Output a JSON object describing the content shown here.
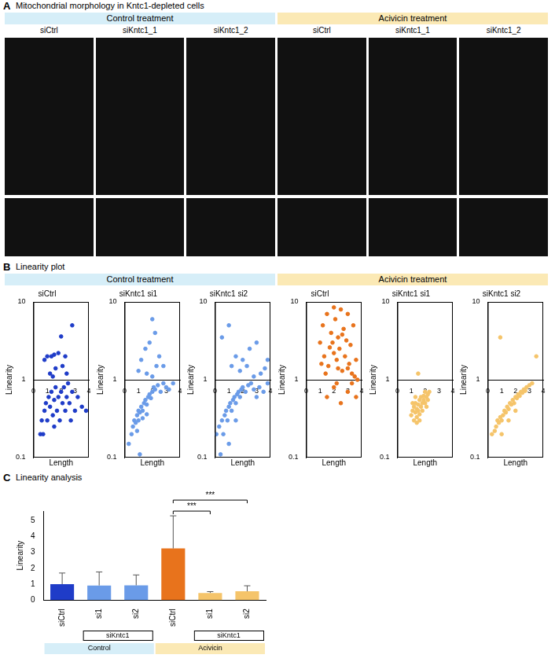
{
  "panel_a": {
    "letter": "A",
    "title": "Mitochondrial morphology in Kntc1-depleted cells",
    "groups": [
      {
        "label": "Control treatment",
        "color": "#d6eef8",
        "columns": [
          "siCtrl",
          "siKntc1_1",
          "siKntc1_2"
        ]
      },
      {
        "label": "Acivicin treatment",
        "color": "#fbe9b5",
        "columns": [
          "siCtrl",
          "siKntc1_1",
          "siKntc1_2"
        ]
      }
    ]
  },
  "panel_b": {
    "letter": "B",
    "title": "Linearity plot",
    "groups": [
      {
        "label": "Control treatment",
        "color": "#d6eef8"
      },
      {
        "label": "Acivicin treatment",
        "color": "#fbe9b5"
      }
    ]
  },
  "panel_c": {
    "letter": "C"
  },
  "chart_data": [
    {
      "type": "scatter",
      "title": "siCtrl",
      "color": "#1f3cc8",
      "log": "y",
      "x_label": "Length",
      "y_label": "Linearity",
      "xlim": [
        0,
        4
      ],
      "xticks": [
        0,
        1,
        2,
        3,
        4
      ],
      "ylim": [
        0.1,
        10
      ],
      "yticks": [
        0.1,
        1,
        10
      ],
      "x": [
        0.8,
        1.0,
        1.2,
        1.3,
        1.5,
        1.6,
        1.8,
        2.0,
        2.1,
        2.4,
        2.8,
        1.4,
        2.3,
        0.5,
        0.6,
        0.7,
        0.8,
        0.9,
        1.0,
        1.1,
        1.2,
        1.3,
        1.4,
        1.5,
        1.6,
        1.7,
        1.8,
        1.9,
        2.0,
        2.1,
        2.2,
        2.3,
        2.4,
        2.5,
        2.6,
        2.8,
        3.0,
        3.2,
        3.5,
        3.8,
        1.5,
        2.7
      ],
      "values": [
        1.8,
        2.0,
        1.2,
        2.0,
        2.1,
        1.4,
        2.2,
        3.6,
        1.5,
        1.2,
        5.0,
        1.1,
        2.0,
        0.2,
        0.3,
        0.2,
        0.4,
        0.5,
        0.3,
        0.6,
        0.45,
        0.7,
        0.35,
        0.55,
        0.8,
        0.4,
        0.6,
        0.3,
        0.7,
        0.5,
        0.8,
        0.4,
        0.6,
        0.9,
        0.5,
        0.7,
        0.4,
        0.6,
        0.45,
        0.4,
        0.25,
        0.3
      ]
    },
    {
      "type": "scatter",
      "title": "siKntc1 si1",
      "color": "#6a9be8",
      "log": "y",
      "x_label": "Length",
      "y_label": "Linearity",
      "xlim": [
        0,
        4
      ],
      "xticks": [
        0,
        1,
        2,
        3,
        4
      ],
      "ylim": [
        0.1,
        10
      ],
      "yticks": [
        0.1,
        1,
        10
      ],
      "x": [
        1.0,
        1.2,
        1.5,
        1.8,
        2.0,
        2.2,
        2.5,
        2.8,
        1.6,
        2.0,
        2.3,
        0.3,
        0.5,
        0.6,
        0.7,
        0.8,
        0.9,
        1.0,
        1.0,
        1.1,
        1.2,
        1.3,
        1.4,
        1.5,
        1.6,
        1.7,
        1.8,
        1.9,
        2.0,
        2.1,
        2.2,
        2.4,
        2.6,
        2.8,
        3.0,
        3.2,
        3.5,
        1.1,
        0.9,
        1.3,
        1.6
      ],
      "values": [
        1.3,
        1.8,
        2.5,
        3.0,
        6.0,
        4.0,
        2.0,
        1.5,
        1.2,
        1.1,
        1.5,
        0.15,
        0.2,
        0.25,
        0.3,
        0.28,
        0.35,
        0.3,
        0.4,
        0.38,
        0.45,
        0.4,
        0.5,
        0.55,
        0.48,
        0.6,
        0.65,
        0.58,
        0.7,
        0.8,
        0.75,
        0.85,
        0.7,
        0.9,
        0.8,
        0.75,
        0.9,
        0.11,
        0.22,
        0.32,
        0.36
      ]
    },
    {
      "type": "scatter",
      "title": "siKntc1 si2",
      "color": "#6a9be8",
      "log": "y",
      "x_label": "Length",
      "y_label": "Linearity",
      "xlim": [
        0,
        4
      ],
      "xticks": [
        0,
        1,
        2,
        3,
        4
      ],
      "ylim": [
        0.1,
        10
      ],
      "yticks": [
        0.1,
        1,
        10
      ],
      "x": [
        0.5,
        1.0,
        1.2,
        1.5,
        1.8,
        2.0,
        2.3,
        2.5,
        3.0,
        3.3,
        3.6,
        3.8,
        2.8,
        0.1,
        0.3,
        0.4,
        0.5,
        0.6,
        0.7,
        0.8,
        0.9,
        1.0,
        1.1,
        1.2,
        1.3,
        1.4,
        1.5,
        1.6,
        1.7,
        1.8,
        1.9,
        2.0,
        2.2,
        2.4,
        2.6,
        2.8,
        3.0,
        3.2,
        3.5,
        3.8,
        1.0,
        1.5
      ],
      "values": [
        3.5,
        5.0,
        1.5,
        2.0,
        1.3,
        1.8,
        1.5,
        2.5,
        3.0,
        1.2,
        1.4,
        1.8,
        1.1,
        0.2,
        0.25,
        0.11,
        0.3,
        0.2,
        0.35,
        0.4,
        0.3,
        0.45,
        0.5,
        0.4,
        0.55,
        0.6,
        0.5,
        0.65,
        0.7,
        0.6,
        0.75,
        0.8,
        0.7,
        0.85,
        0.9,
        0.75,
        0.6,
        0.8,
        0.7,
        0.9,
        0.15,
        0.3
      ]
    },
    {
      "type": "scatter",
      "title": "siCtrl",
      "color": "#e8731c",
      "log": "y",
      "x_label": "Length",
      "y_label": "Linearity",
      "xlim": [
        0,
        4
      ],
      "xticks": [
        0,
        1,
        2,
        3,
        4
      ],
      "ylim": [
        0.1,
        10
      ],
      "yticks": [
        0.1,
        1,
        10
      ],
      "x": [
        1.0,
        1.2,
        1.3,
        1.5,
        1.6,
        1.8,
        1.9,
        2.0,
        2.1,
        2.2,
        2.3,
        2.4,
        2.5,
        2.6,
        2.7,
        2.8,
        2.9,
        3.0,
        3.1,
        3.2,
        3.3,
        3.4,
        3.5,
        3.6,
        1.4,
        1.7,
        2.0,
        2.3,
        2.6,
        3.0,
        1.1,
        3.7,
        1.5,
        2.0,
        2.5,
        3.0,
        3.3,
        3.6,
        2.2
      ],
      "values": [
        3.0,
        5.0,
        2.0,
        7.0,
        1.5,
        4.0,
        3.0,
        2.2,
        6.0,
        1.8,
        3.5,
        2.5,
        8.0,
        1.3,
        4.5,
        2.0,
        3.2,
        7.0,
        1.6,
        2.8,
        1.2,
        5.0,
        1.1,
        1.8,
        1.2,
        2.6,
        8.5,
        1.4,
        3.8,
        1.4,
        1.6,
        1.0,
        0.6,
        0.8,
        0.5,
        0.7,
        0.9,
        0.6,
        0.9
      ]
    },
    {
      "type": "scatter",
      "title": "siKntc1 si1",
      "color": "#f5c46a",
      "log": "y",
      "x_label": "Length",
      "y_label": "Linearity",
      "xlim": [
        0,
        4
      ],
      "xticks": [
        0,
        1,
        2,
        3,
        4
      ],
      "ylim": [
        0.1,
        10
      ],
      "yticks": [
        0.1,
        1,
        10
      ],
      "x": [
        1.0,
        1.1,
        1.2,
        1.2,
        1.3,
        1.3,
        1.4,
        1.4,
        1.5,
        1.5,
        1.6,
        1.6,
        1.7,
        1.7,
        1.8,
        1.8,
        1.9,
        1.9,
        2.0,
        2.0,
        2.1,
        2.1,
        2.2,
        2.2,
        2.3,
        1.4,
        1.6,
        1.5,
        1.1,
        1.3
      ],
      "values": [
        0.35,
        0.4,
        0.3,
        0.45,
        0.38,
        0.5,
        0.42,
        0.33,
        0.48,
        0.4,
        0.55,
        0.36,
        0.45,
        0.6,
        0.5,
        0.4,
        0.55,
        0.62,
        0.5,
        0.7,
        0.6,
        0.45,
        0.65,
        0.55,
        0.7,
        0.28,
        0.3,
        1.2,
        0.5,
        0.6
      ]
    },
    {
      "type": "scatter",
      "title": "siKntc1 si2",
      "color": "#f5c46a",
      "log": "y",
      "x_label": "Length",
      "y_label": "Linearity",
      "xlim": [
        0,
        4
      ],
      "xticks": [
        0,
        1,
        2,
        3,
        4
      ],
      "ylim": [
        0.1,
        10
      ],
      "yticks": [
        0.1,
        1,
        10
      ],
      "x": [
        0.9,
        3.5,
        0.3,
        0.5,
        0.6,
        0.7,
        0.8,
        0.9,
        1.0,
        1.1,
        1.2,
        1.3,
        1.4,
        1.5,
        1.6,
        1.7,
        1.8,
        1.9,
        2.0,
        2.1,
        2.2,
        2.3,
        2.4,
        2.5,
        2.6,
        2.7,
        2.8,
        3.0,
        3.2,
        1.0,
        1.5,
        2.0
      ],
      "values": [
        3.5,
        2.0,
        0.2,
        0.22,
        0.25,
        0.3,
        0.28,
        0.33,
        0.3,
        0.35,
        0.4,
        0.38,
        0.45,
        0.42,
        0.5,
        0.48,
        0.55,
        0.5,
        0.6,
        0.58,
        0.65,
        0.62,
        0.7,
        0.68,
        0.75,
        0.72,
        0.8,
        0.85,
        0.9,
        0.2,
        0.3,
        0.4
      ]
    },
    {
      "type": "bar",
      "title": "Linearity analysis",
      "y_label": "Linearity",
      "categories": [
        "siCtrl",
        "si1",
        "si2",
        "siCtrl",
        "si1",
        "si2"
      ],
      "values": [
        1.0,
        0.92,
        0.93,
        3.25,
        0.45,
        0.55
      ],
      "errors": [
        0.7,
        0.85,
        0.65,
        2.05,
        0.08,
        0.35
      ],
      "colors": [
        "#1f3cc8",
        "#6a9be8",
        "#6a9be8",
        "#e8731c",
        "#f5c46a",
        "#f5c46a"
      ],
      "ylim": [
        0,
        5.6
      ],
      "yticks": [
        0,
        1,
        2,
        3,
        4,
        5
      ],
      "grid": false,
      "subgroups": [
        {
          "label": "siKntc1",
          "categories": [
            1,
            2
          ]
        },
        {
          "label": "siKntc1",
          "categories": [
            4,
            5
          ]
        }
      ],
      "groups": [
        {
          "label": "Control",
          "categories": [
            0,
            1,
            2
          ],
          "color": "#d6eef8"
        },
        {
          "label": "Acivicin",
          "categories": [
            3,
            4,
            5
          ],
          "color": "#fbe9b5"
        }
      ],
      "comparisons": [
        {
          "from": 3,
          "to": 4,
          "label": "***"
        },
        {
          "from": 3,
          "to": 5,
          "label": "***"
        }
      ]
    }
  ]
}
